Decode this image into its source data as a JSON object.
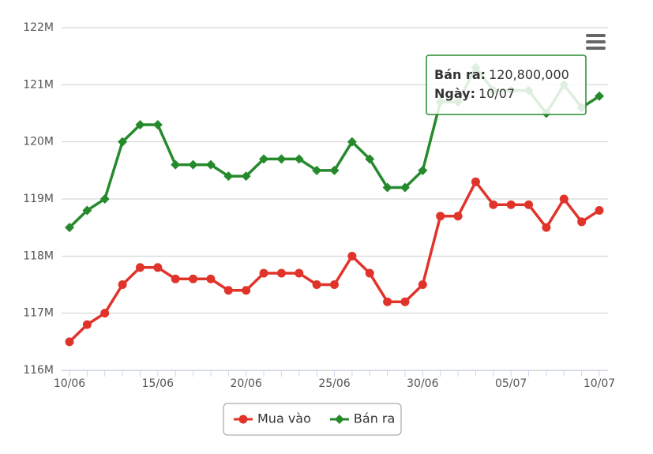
{
  "chart_data": {
    "type": "line",
    "categories": [
      "10/06",
      null,
      null,
      null,
      null,
      "15/06",
      null,
      null,
      null,
      null,
      "20/06",
      null,
      null,
      null,
      null,
      "25/06",
      null,
      null,
      null,
      null,
      "30/06",
      null,
      null,
      null,
      null,
      "05/07",
      null,
      null,
      null,
      null,
      "10/07"
    ],
    "series": [
      {
        "name": "Mua vào",
        "color": "#e0342b",
        "marker": "circle",
        "values": [
          116500000,
          116800000,
          117000000,
          117500000,
          117800000,
          117800000,
          117600000,
          117600000,
          117600000,
          117400000,
          117400000,
          117700000,
          117700000,
          117700000,
          117500000,
          117500000,
          118000000,
          117700000,
          117200000,
          117200000,
          117500000,
          118700000,
          118700000,
          119300000,
          118900000,
          118900000,
          118900000,
          118500000,
          119000000,
          118600000,
          118800000
        ]
      },
      {
        "name": "Bán ra",
        "color": "#268a2d",
        "marker": "diamond",
        "values": [
          118500000,
          118800000,
          119000000,
          120000000,
          120300000,
          120300000,
          119600000,
          119600000,
          119600000,
          119400000,
          119400000,
          119700000,
          119700000,
          119700000,
          119500000,
          119500000,
          120000000,
          119700000,
          119200000,
          119200000,
          119500000,
          120700000,
          120700000,
          121300000,
          120900000,
          120900000,
          120900000,
          120500000,
          121000000,
          120600000,
          120800000
        ]
      }
    ],
    "ylim": [
      116000000,
      122000000
    ],
    "yticks": [
      {
        "value": 116000000,
        "label": "116M"
      },
      {
        "value": 117000000,
        "label": "117M"
      },
      {
        "value": 118000000,
        "label": "118M"
      },
      {
        "value": 119000000,
        "label": "119M"
      },
      {
        "value": 120000000,
        "label": "120M"
      },
      {
        "value": 121000000,
        "label": "121M"
      },
      {
        "value": 122000000,
        "label": "122M"
      }
    ],
    "grid": true,
    "legend": "bottom",
    "tooltip": {
      "lines": [
        {
          "label": "Bán ra:",
          "value": "120,800,000"
        },
        {
          "label": "Ngày:",
          "value": "10/07"
        }
      ]
    }
  }
}
